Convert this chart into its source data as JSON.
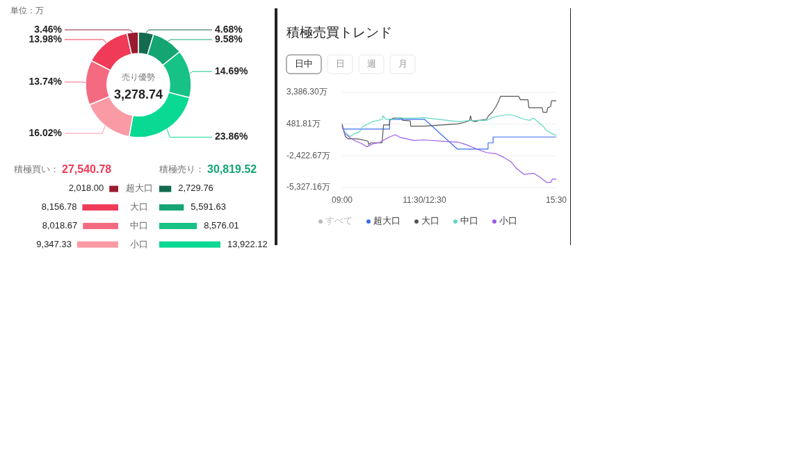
{
  "chart_data": [
    {
      "type": "donut",
      "categories": [
        null,
        null,
        null,
        null,
        null,
        null,
        null,
        null
      ],
      "values": [
        4.68,
        9.58,
        14.69,
        23.86,
        16.02,
        13.74,
        13.98,
        3.46
      ],
      "colors": [
        "#136a4f",
        "#14a573",
        "#16c285",
        "#0ad993",
        "#f99aa5",
        "#f46a81",
        "#ef3b57",
        "#9a1b2e"
      ],
      "value_labels": [
        "4.68%",
        "9.58%",
        "14.69%",
        "23.86%",
        "16.02%",
        "13.74%",
        "13.98%",
        "3.46%"
      ],
      "annotations": [
        "単位：万",
        "売り優勢",
        "3,278.74"
      ]
    },
    {
      "type": "bar",
      "orientation": "horizontal",
      "categories": [
        "超大口",
        "大口",
        "中口",
        "小口"
      ],
      "values": [
        2018.0,
        8156.78,
        8018.67,
        9347.33
      ],
      "colors": [
        "#9a1b2e",
        "#ef3b57",
        "#f46a81",
        "#f99aa5"
      ],
      "value_labels": [
        "2,018.00",
        "8,156.78",
        "8,018.67",
        "9,347.33"
      ],
      "annotations": [
        "積極買い：",
        "27,540.78"
      ]
    },
    {
      "type": "bar",
      "orientation": "horizontal",
      "categories": [
        null,
        null,
        null,
        null
      ],
      "values": [
        2729.76,
        5591.63,
        8576.01,
        13922.12
      ],
      "colors": [
        "#136a4f",
        "#14a573",
        "#16c285",
        "#0ad993"
      ],
      "value_labels": [
        "2,729.76",
        "5,591.63",
        "8,576.01",
        "13,922.12"
      ],
      "annotations": [
        "積極売り：",
        "30,819.52"
      ]
    },
    {
      "type": "line",
      "title": "積極売買トレンド",
      "annotations": [
        "日中",
        "日",
        "週",
        "月"
      ],
      "xlim": [
        9,
        15.5
      ],
      "xticks": [
        {
          "value": 9,
          "label": "09:00"
        },
        {
          "value": 11.5,
          "label": "11:30/12:30"
        },
        {
          "value": 15.5,
          "label": "15:30"
        }
      ],
      "ylim": [
        -5327.16,
        3386.3
      ],
      "yticks": [
        {
          "value": 3386.3,
          "label": "3,386.30万"
        },
        {
          "value": 481.81,
          "label": "481.81万"
        },
        {
          "value": -2422.67,
          "label": "-2,422.67万"
        },
        {
          "value": -5327.16,
          "label": "-5,327.16万"
        }
      ],
      "grid": "y",
      "legend": "bottom",
      "line_style": "solid",
      "series": [
        {
          "name": "すべて",
          "color": "#bbbbbb"
        },
        {
          "name": "超大口",
          "color": "#3a6df0",
          "x": [
            9,
            9.023,
            10.44,
            10.44,
            11.5,
            12.5,
            13.43,
            13.43,
            13.583,
            13.583,
            15.5
          ],
          "values": [
            290,
            20,
            20,
            920,
            920,
            -1810,
            -1810,
            -1240,
            -1240,
            -700,
            -700
          ]
        },
        {
          "name": "大口",
          "color": "#555555",
          "x": [
            9,
            9.097,
            9.183,
            9.468,
            9.783,
            9.812,
            9.868,
            10.212,
            10.258,
            10.44,
            10.452,
            10.555,
            10.812,
            10.84,
            11.07,
            11.082,
            11.5,
            12.51,
            12.727,
            12.87,
            12.898,
            12.927,
            13.042,
            13.155,
            13.385,
            13.442,
            13.555,
            13.67,
            13.738,
            13.813,
            14.357,
            14.413,
            14.642,
            14.67,
            15.07,
            15.1,
            15.213,
            15.242,
            15.328,
            15.357,
            15.5
          ],
          "values": [
            500,
            -650,
            -870,
            -870,
            -1080,
            -1390,
            -1240,
            -1240,
            400,
            400,
            860,
            1030,
            1030,
            820,
            780,
            290,
            290,
            500,
            650,
            820,
            1240,
            820,
            710,
            820,
            920,
            1240,
            1560,
            2080,
            2500,
            3030,
            3030,
            2710,
            2710,
            1980,
            1980,
            1560,
            1560,
            1980,
            2080,
            2610,
            2610
          ]
        },
        {
          "name": "中口",
          "color": "#5fd8c0",
          "x": [
            9,
            9.04,
            9.125,
            9.24,
            9.355,
            9.527,
            9.64,
            9.755,
            9.927,
            10.098,
            10.212,
            10.24,
            10.327,
            10.498,
            10.727,
            10.955,
            11.242,
            11.47,
            12.527,
            12.755,
            13.098,
            13.385,
            13.555,
            13.785,
            14.07,
            14.242,
            14.528,
            14.7,
            14.813,
            14.928,
            15.1,
            15.213,
            15.328,
            15.5
          ],
          "values": [
            290,
            -20,
            -340,
            -660,
            -440,
            -230,
            290,
            440,
            710,
            820,
            920,
            1240,
            920,
            920,
            1030,
            1030,
            1030,
            1070,
            710,
            780,
            820,
            820,
            1070,
            1240,
            1350,
            1240,
            920,
            820,
            1030,
            710,
            290,
            -130,
            -340,
            -550
          ]
        },
        {
          "name": "小口",
          "color": "#9b5de5",
          "x": [
            9,
            9.068,
            9.24,
            9.412,
            9.583,
            9.755,
            9.927,
            10.155,
            10.268,
            10.44,
            10.612,
            10.783,
            10.955,
            11.183,
            11.47,
            12.527,
            12.755,
            13.098,
            13.385,
            13.67,
            13.898,
            14.127,
            14.298,
            14.528,
            14.813,
            14.985,
            15.213,
            15.328,
            15.385,
            15.5
          ],
          "values": [
            290,
            -340,
            -760,
            -1080,
            -1290,
            -1600,
            -1330,
            -1180,
            -970,
            -700,
            -490,
            -760,
            -870,
            -1030,
            -970,
            -1180,
            -1390,
            -1810,
            -2130,
            -2230,
            -2550,
            -2970,
            -3600,
            -4130,
            -4020,
            -4340,
            -4860,
            -4860,
            -4550,
            -4550
          ]
        }
      ]
    }
  ]
}
